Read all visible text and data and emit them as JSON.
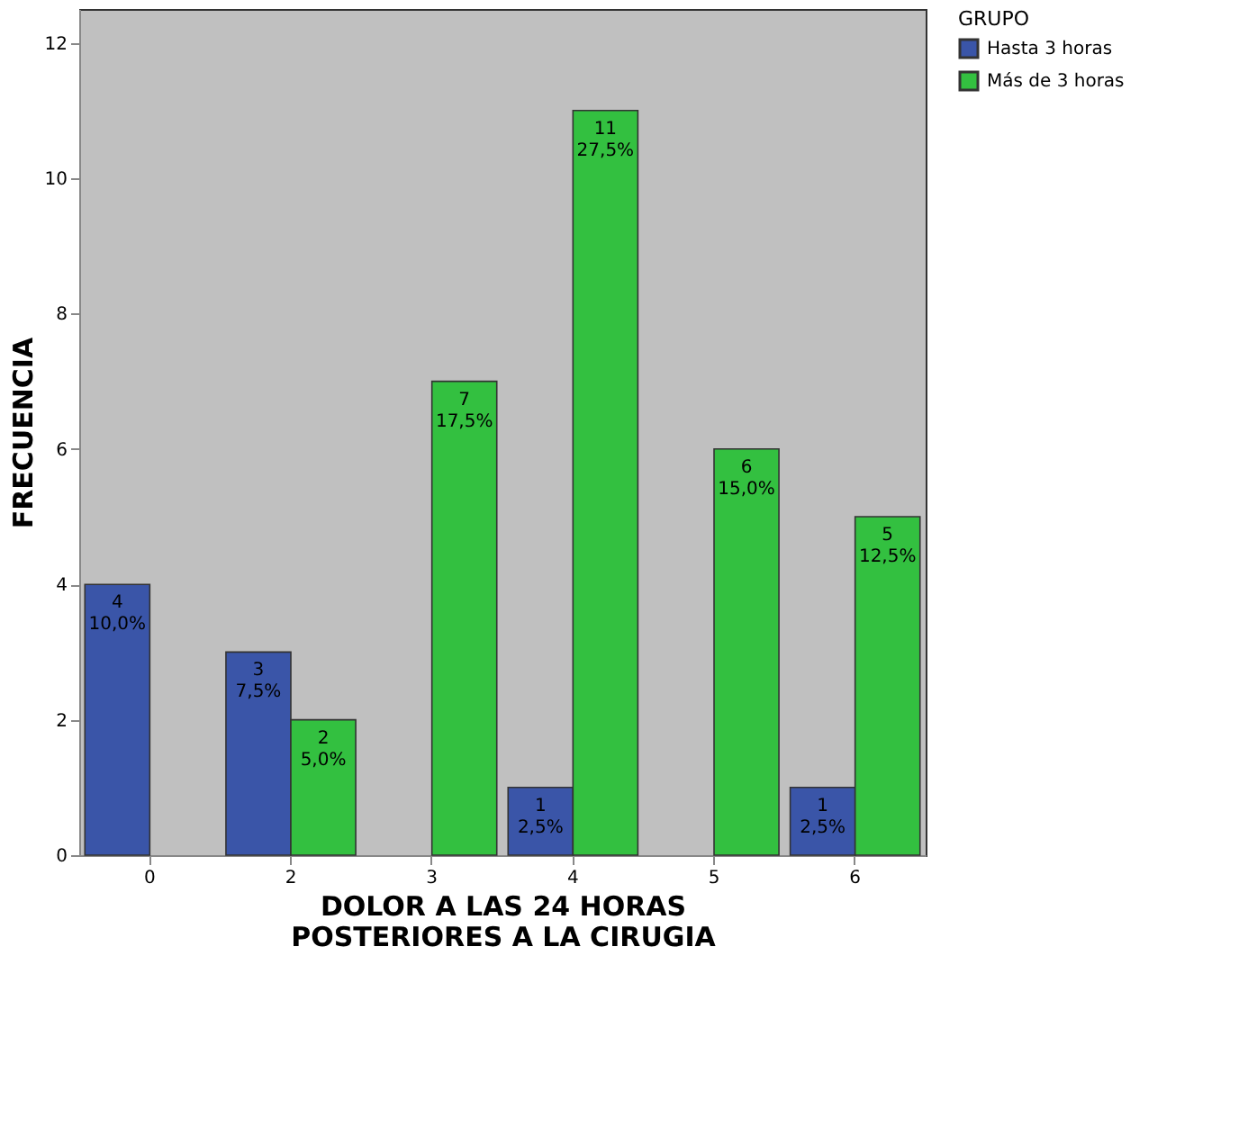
{
  "chart_data": {
    "type": "bar",
    "xlabel": "DOLOR A LAS 24 HORAS\nPOSTERIORES A LA CIRUGIA",
    "ylabel": "FRECUENCIA",
    "legend_title": "GRUPO",
    "legend": "top right",
    "grid": false,
    "categories": [
      "0",
      "2",
      "3",
      "4",
      "5",
      "6"
    ],
    "ylim": [
      0,
      12.5
    ],
    "yticks": [
      0,
      2,
      4,
      6,
      8,
      10,
      12
    ],
    "series": [
      {
        "name": "Hasta 3 horas",
        "color": "#3a55a8",
        "values": [
          4,
          3,
          null,
          1,
          null,
          1
        ],
        "value_labels": [
          "4\n10,0%",
          "3\n7,5%",
          null,
          "1\n2,5%",
          null,
          "1\n2,5%"
        ]
      },
      {
        "name": "Más de 3 horas",
        "color": "#33c040",
        "values": [
          null,
          2,
          7,
          11,
          6,
          5
        ],
        "value_labels": [
          null,
          "2\n5,0%",
          "7\n17,5%",
          "11\n27,5%",
          "6\n15,0%",
          "5\n12,5%"
        ]
      }
    ]
  }
}
